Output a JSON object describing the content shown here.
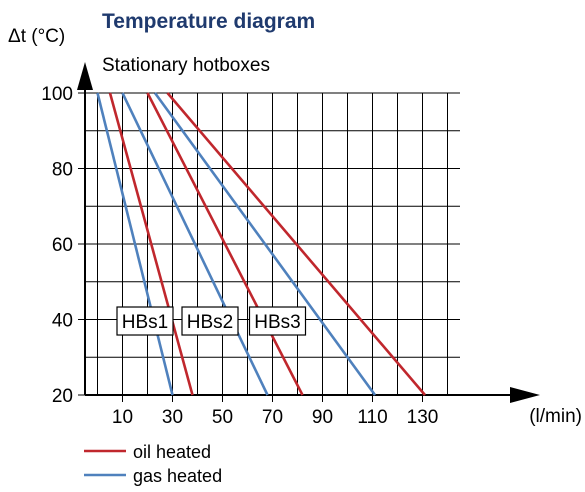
{
  "chart_data": {
    "type": "line",
    "title": "Temperature diagram",
    "subtitle": "Stationary hotboxes",
    "ylabel": "Δt (°C)",
    "xlabel": "(l/min)",
    "xlim": [
      -5,
      145
    ],
    "ylim": [
      20,
      100
    ],
    "x_ticks": [
      10,
      30,
      50,
      70,
      90,
      110,
      130
    ],
    "y_ticks": [
      20,
      40,
      60,
      80,
      100
    ],
    "grid": true,
    "colors": {
      "oil heated": "#c0272d",
      "gas heated": "#4f81bd",
      "title": "#1f3a6e"
    },
    "legend": {
      "placement": "bottom-left",
      "entries": [
        {
          "label": "oil heated",
          "color": "#c0272d"
        },
        {
          "label": "gas heated",
          "color": "#4f81bd"
        }
      ]
    },
    "series": [
      {
        "group": "HBs1",
        "kind": "oil heated",
        "points": [
          [
            5,
            100
          ],
          [
            38,
            20
          ]
        ]
      },
      {
        "group": "HBs1",
        "kind": "gas heated",
        "points": [
          [
            0,
            100
          ],
          [
            30,
            20
          ]
        ]
      },
      {
        "group": "HBs2",
        "kind": "oil heated",
        "points": [
          [
            20,
            100
          ],
          [
            82,
            20
          ]
        ]
      },
      {
        "group": "HBs2",
        "kind": "gas heated",
        "points": [
          [
            10,
            100
          ],
          [
            68,
            20
          ]
        ]
      },
      {
        "group": "HBs3",
        "kind": "oil heated",
        "points": [
          [
            28,
            100
          ],
          [
            131,
            20
          ]
        ]
      },
      {
        "group": "HBs3",
        "kind": "gas heated",
        "points": [
          [
            23,
            100
          ],
          [
            111,
            20
          ]
        ]
      }
    ],
    "annotations": [
      {
        "text": "HBs1",
        "x": 19,
        "y": 39.6
      },
      {
        "text": "HBs2",
        "x": 45,
        "y": 39.6
      },
      {
        "text": "HBs3",
        "x": 72,
        "y": 39.6
      }
    ]
  }
}
